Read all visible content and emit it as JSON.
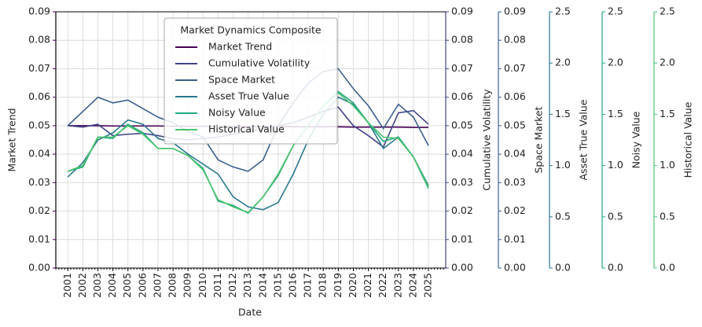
{
  "chart_data": {
    "type": "line",
    "xlabel": "Date",
    "x": [
      2001,
      2002,
      2003,
      2004,
      2005,
      2006,
      2007,
      2008,
      2009,
      2010,
      2011,
      2012,
      2013,
      2014,
      2015,
      2016,
      2017,
      2018,
      2019,
      2020,
      2021,
      2022,
      2023,
      2024,
      2025
    ],
    "xlim": [
      2000.2,
      2026.15
    ],
    "xticks": [
      2001,
      2002,
      2003,
      2004,
      2005,
      2006,
      2007,
      2008,
      2009,
      2010,
      2011,
      2012,
      2013,
      2014,
      2015,
      2016,
      2017,
      2018,
      2019,
      2020,
      2021,
      2022,
      2023,
      2024,
      2025
    ],
    "ylim": [
      0,
      0.09
    ],
    "grid": true,
    "legend_title": "Market Dynamics Composite",
    "legend_position": "upper center",
    "y_axes": [
      {
        "label": "Market Trend",
        "color": "#440154",
        "ylim": [
          0,
          0.09
        ],
        "yticks": [
          {
            "value": 0,
            "label": "0.00"
          },
          0.01,
          0.02,
          0.03,
          0.04,
          0.05,
          0.06,
          0.07,
          0.08,
          0.09
        ]
      },
      {
        "label": "Cumulative Volatility",
        "color": "#414487",
        "ylim": [
          0,
          0.09
        ],
        "yticks": [
          {
            "value": 0,
            "label": "0.00"
          },
          0.01,
          0.02,
          0.03,
          0.04,
          0.05,
          0.06,
          0.07,
          0.08,
          0.09
        ]
      },
      {
        "label": "Space Market",
        "color": "#3b5f8e",
        "ylim": [
          0,
          0.09
        ],
        "yticks": [
          {
            "value": 0,
            "label": "0.00"
          },
          0.01,
          0.02,
          0.03,
          0.04,
          0.05,
          0.06,
          0.07,
          0.08,
          0.09
        ]
      },
      {
        "label": "Asset True Value",
        "color": "#2a788e",
        "ylim": [
          0,
          2.5
        ],
        "yticks": [
          {
            "value": 0,
            "label": "0.0"
          },
          0.5,
          {
            "value": 1,
            "label": "1.0"
          },
          1.5,
          {
            "value": 2,
            "label": "2.0"
          },
          2.5
        ]
      },
      {
        "label": "Noisy Value",
        "color": "#22a884",
        "ylim": [
          0,
          2.5
        ],
        "yticks": [
          {
            "value": 0,
            "label": "0.0"
          },
          0.5,
          {
            "value": 1,
            "label": "1.0"
          },
          1.5,
          {
            "value": 2,
            "label": "2.0"
          },
          2.5
        ]
      },
      {
        "label": "Historical Value",
        "color": "#4cc26c",
        "ylim": [
          0,
          2.5
        ],
        "yticks": [
          {
            "value": 0,
            "label": "0.0"
          },
          0.5,
          {
            "value": 1,
            "label": "1.0"
          },
          1.5,
          {
            "value": 2,
            "label": "2.0"
          },
          2.5
        ]
      }
    ],
    "series": [
      {
        "name": "Market Trend",
        "color": "#440154",
        "values": [
          0.05,
          0.05,
          0.05,
          0.0499,
          0.0499,
          0.0499,
          0.0499,
          0.0498,
          0.0498,
          0.0498,
          0.0498,
          0.0497,
          0.0497,
          0.0497,
          0.0497,
          0.0496,
          0.0496,
          0.0496,
          0.0496,
          0.0495,
          0.0495,
          0.0495,
          0.0495,
          0.0494,
          0.0494
        ]
      },
      {
        "name": "Cumulative Volatility",
        "color": "#414487",
        "values": [
          0.05,
          0.0495,
          0.0505,
          0.0465,
          0.047,
          0.0473,
          0.0465,
          0.0455,
          0.045,
          0.0455,
          0.046,
          0.047,
          0.048,
          0.049,
          0.05,
          0.051,
          0.053,
          0.055,
          0.0565,
          0.05,
          0.0465,
          0.0425,
          0.0545,
          0.0553,
          0.0505
        ]
      },
      {
        "name": "Space Market",
        "color": "#3b5f8e",
        "values": [
          0.05,
          0.055,
          0.06,
          0.058,
          0.059,
          0.056,
          0.053,
          0.051,
          0.048,
          0.046,
          0.038,
          0.0355,
          0.034,
          0.038,
          0.05,
          0.058,
          0.065,
          0.069,
          0.07,
          0.063,
          0.057,
          0.049,
          0.0575,
          0.053,
          0.043
        ]
      },
      {
        "name": "Asset True Value",
        "color": "#2a788e",
        "values": [
          0.032,
          0.037,
          0.045,
          0.0475,
          0.052,
          0.0505,
          0.0455,
          0.044,
          0.04,
          0.0365,
          0.033,
          0.025,
          0.0215,
          0.0205,
          0.023,
          0.033,
          0.045,
          0.054,
          0.06,
          0.0575,
          0.051,
          0.042,
          0.046,
          0.039,
          0.029
        ]
      },
      {
        "name": "Noisy Value",
        "color": "#22a884",
        "values": [
          0.034,
          0.0355,
          0.046,
          0.0455,
          0.0505,
          0.0475,
          0.042,
          0.042,
          0.0395,
          0.035,
          0.0235,
          0.022,
          0.0193,
          0.025,
          0.0325,
          0.043,
          0.05,
          0.057,
          0.062,
          0.058,
          0.051,
          0.0445,
          0.046,
          0.039,
          0.028
        ]
      },
      {
        "name": "Historical Value",
        "color": "#4cc26c",
        "values": [
          0.034,
          0.036,
          0.046,
          0.046,
          0.05,
          0.047,
          0.042,
          0.042,
          0.0395,
          0.0345,
          0.024,
          0.0215,
          0.0195,
          0.025,
          0.033,
          0.043,
          0.05,
          0.057,
          0.0615,
          0.057,
          0.051,
          0.046,
          0.0455,
          0.039,
          0.0285
        ]
      }
    ]
  }
}
